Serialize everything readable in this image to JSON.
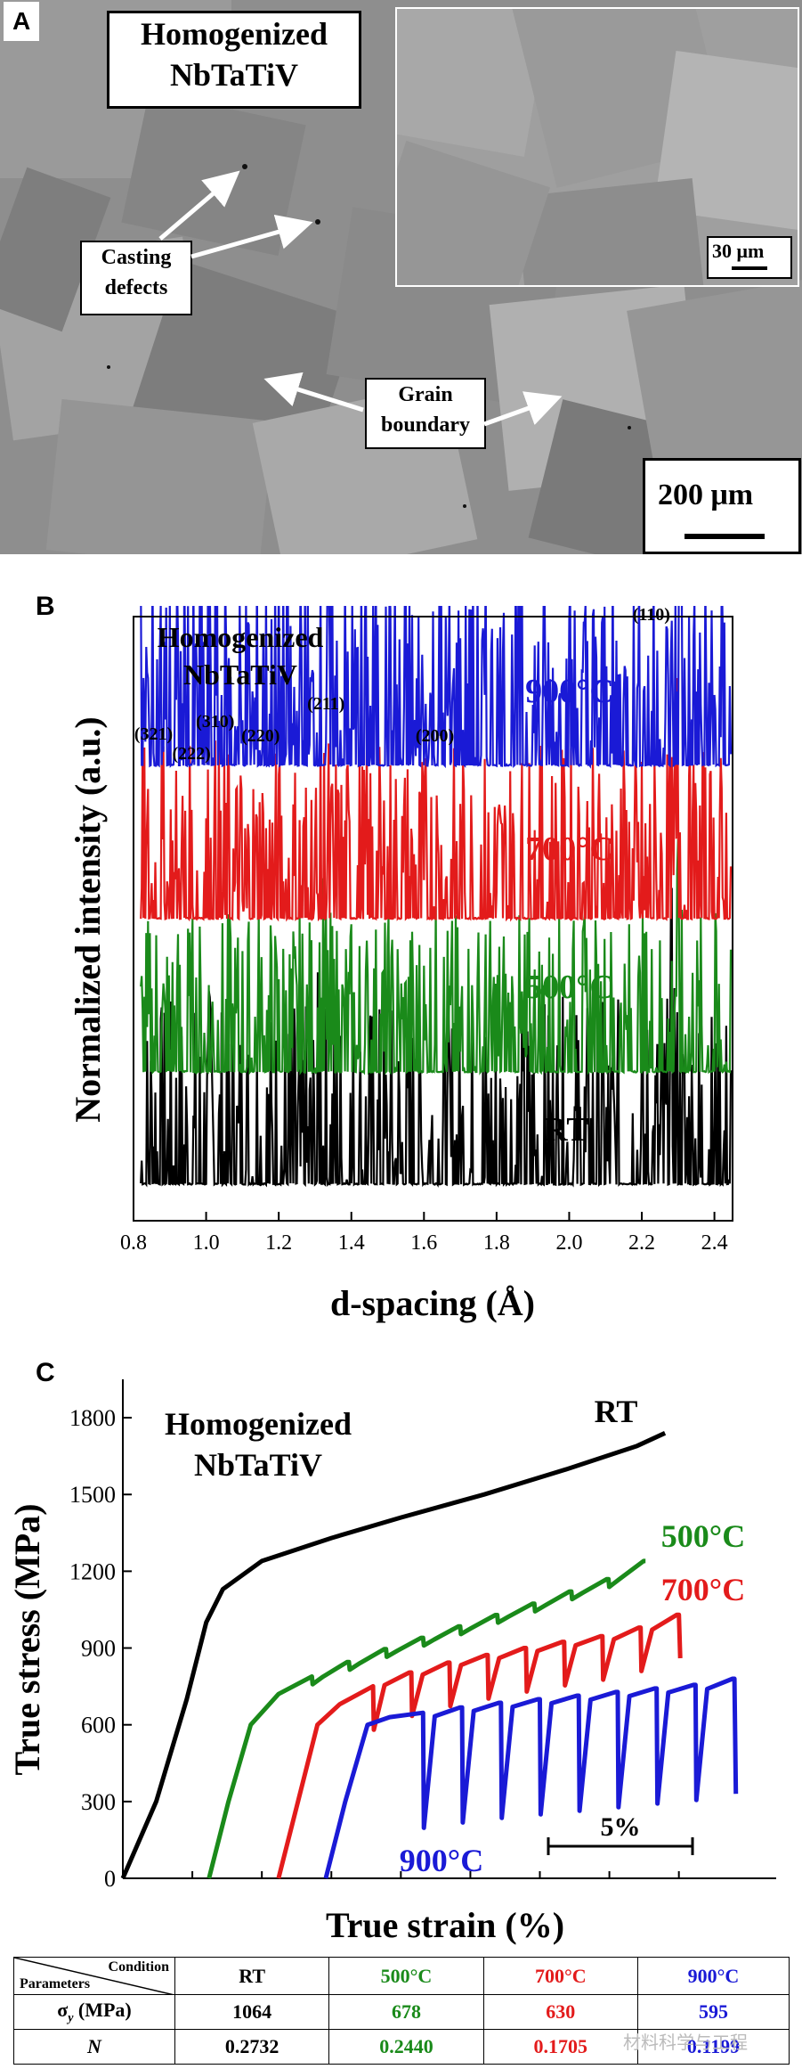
{
  "panel_a": {
    "letter": "A",
    "title_line1": "Homogenized",
    "title_line2": "NbTaTiV",
    "casting_line1": "Casting",
    "casting_line2": "defects",
    "grain_line1": "Grain",
    "grain_line2": "boundary",
    "inset_scale": "30 μm",
    "main_scale": "200 μm"
  },
  "panel_b": {
    "letter": "B",
    "title_line1": "Homogenized",
    "title_line2": "NbTaTiV",
    "xlabel": "d-spacing (Å)",
    "ylabel": "Normalized intensity (a.u.)",
    "peak_labels": [
      "(321)",
      "(222)",
      "(310)",
      "(220)",
      "(211)",
      "(200)",
      "(110)"
    ],
    "series_labels": [
      "900°C",
      "700°C",
      "500°C",
      "RT"
    ],
    "colors": {
      "RT": "#000000",
      "500C": "#1a8a1a",
      "700C": "#e31b1b",
      "900C": "#1a1ad6"
    }
  },
  "panel_c": {
    "letter": "C",
    "title_line1": "Homogenized",
    "title_line2": "NbTaTiV",
    "xlabel": "True strain (%)",
    "ylabel": "True stress (MPa)",
    "scale_bar_label": "5%",
    "series_labels": [
      "RT",
      "500°C",
      "700°C",
      "900°C"
    ]
  },
  "chart_data": [
    {
      "type": "line",
      "panel": "B",
      "title": "",
      "xlabel": "d-spacing (Å)",
      "ylabel": "Normalized intensity (a.u.)",
      "xlim": [
        0.8,
        2.45
      ],
      "xticks": [
        0.8,
        1.0,
        1.2,
        1.4,
        1.6,
        1.8,
        2.0,
        2.2,
        2.4
      ],
      "peaks": [
        {
          "hkl": "(321)",
          "d": 0.87
        },
        {
          "hkl": "(222)",
          "d": 0.94
        },
        {
          "hkl": "(310)",
          "d": 1.03
        },
        {
          "hkl": "(220)",
          "d": 1.15
        },
        {
          "hkl": "(211)",
          "d": 1.33
        },
        {
          "hkl": "(200)",
          "d": 1.63
        },
        {
          "hkl": "(110)",
          "d": 2.3
        }
      ],
      "series": [
        {
          "name": "RT",
          "peak_shift": -0.015,
          "peak_intensity": [
            0.3,
            0.06,
            0.3,
            0.2,
            0.48,
            0.14,
            1.0
          ]
        },
        {
          "name": "500°C",
          "peak_shift": -0.005,
          "peak_intensity": [
            0.2,
            0.05,
            0.26,
            0.16,
            0.4,
            0.26,
            1.0
          ]
        },
        {
          "name": "700°C",
          "peak_shift": 0.0,
          "peak_intensity": [
            0.18,
            0.04,
            0.16,
            0.15,
            0.36,
            0.2,
            1.0
          ]
        },
        {
          "name": "900°C",
          "peak_shift": 0.005,
          "peak_intensity": [
            0.18,
            0.05,
            0.18,
            0.17,
            0.36,
            0.22,
            1.0
          ]
        }
      ]
    },
    {
      "type": "line",
      "panel": "C",
      "title": "",
      "xlabel": "True strain (%)",
      "ylabel": "True stress (MPa)",
      "ylim": [
        0,
        1950
      ],
      "yticks": [
        0,
        300,
        600,
        900,
        1200,
        1500,
        1800
      ],
      "series": [
        {
          "name": "RT",
          "x": [
            0,
            1.2,
            2.3,
            3.0,
            3.6,
            5.0,
            7.5,
            10.0,
            13.0,
            16.0,
            18.5,
            19.5
          ],
          "y": [
            0,
            300,
            700,
            1000,
            1130,
            1240,
            1330,
            1410,
            1500,
            1600,
            1690,
            1740
          ]
        },
        {
          "name": "500°C",
          "x": [
            3.1,
            3.8,
            4.6,
            5.6,
            7.0,
            9.0,
            12.0,
            15.0,
            17.5,
            18.8
          ],
          "y": [
            0,
            300,
            600,
            720,
            800,
            880,
            980,
            1080,
            1170,
            1240
          ]
        },
        {
          "name": "700°C",
          "x": [
            5.6,
            6.3,
            7.0,
            7.8,
            9.5,
            12.0,
            15.0,
            17.5,
            19.0,
            20.0
          ],
          "y": [
            0,
            300,
            600,
            680,
            780,
            850,
            910,
            950,
            990,
            1030
          ]
        },
        {
          "name": "900°C",
          "x": [
            7.3,
            8.0,
            8.8,
            9.6,
            11.0,
            13.0,
            15.0,
            17.0,
            19.0,
            21.0,
            22.0
          ],
          "y": [
            0,
            300,
            600,
            630,
            650,
            680,
            700,
            720,
            740,
            760,
            780
          ]
        }
      ],
      "serrations": {
        "500°C": {
          "count": 9,
          "drop_MPa": 30
        },
        "700°C": {
          "count": 8,
          "drop_MPa": 170
        },
        "900°C": {
          "count": 8,
          "drop_MPa": 450
        }
      },
      "scale_bar": {
        "label": "5%",
        "length": 5
      }
    },
    {
      "type": "table",
      "panel": "C-table",
      "header_corner_top": "Condition",
      "header_corner_bottom": "Parameters",
      "columns": [
        "RT",
        "500°C",
        "700°C",
        "900°C"
      ],
      "rows": [
        {
          "label": "σy (MPa)",
          "values": [
            "1064",
            "678",
            "630",
            "595"
          ]
        },
        {
          "label": "N",
          "values": [
            "0.2732",
            "0.2440",
            "0.1705",
            "0.1199"
          ]
        }
      ]
    }
  ],
  "watermark": "材料科学与工程"
}
